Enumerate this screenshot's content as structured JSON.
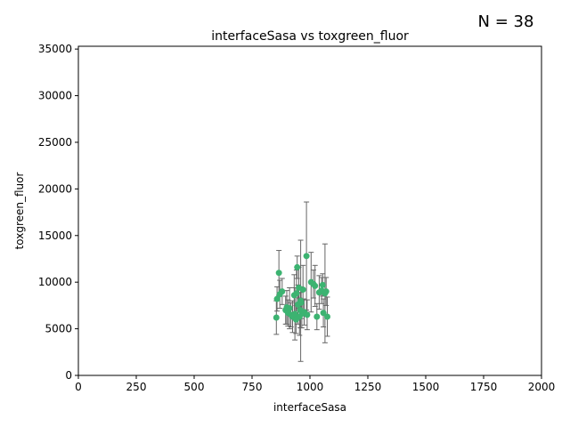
{
  "chart_data": {
    "type": "scatter",
    "title": "interfaceSasa vs toxgreen_fluor",
    "xlabel": "interfaceSasa",
    "ylabel": "toxgreen_fluor",
    "xlim": [
      0,
      2000
    ],
    "ylim": [
      0,
      35300
    ],
    "xticks": [
      0,
      250,
      500,
      750,
      1000,
      1250,
      1500,
      1750,
      2000
    ],
    "yticks": [
      0,
      5000,
      10000,
      15000,
      20000,
      25000,
      30000,
      35000
    ],
    "annotation": "N = 38",
    "grid": false,
    "colors": {
      "point": "#3cb371",
      "errorbar": "#666666"
    },
    "points": [
      {
        "x": 855,
        "y": 6200,
        "err": 1800
      },
      {
        "x": 858,
        "y": 8200,
        "err": 1300
      },
      {
        "x": 866,
        "y": 11000,
        "err": 2400
      },
      {
        "x": 870,
        "y": 8700,
        "err": 1500
      },
      {
        "x": 880,
        "y": 9000,
        "err": 1400
      },
      {
        "x": 895,
        "y": 7000,
        "err": 1500
      },
      {
        "x": 900,
        "y": 7300,
        "err": 1800
      },
      {
        "x": 905,
        "y": 6700,
        "err": 1400
      },
      {
        "x": 912,
        "y": 7200,
        "err": 2200
      },
      {
        "x": 918,
        "y": 6500,
        "err": 1300
      },
      {
        "x": 925,
        "y": 6300,
        "err": 1700
      },
      {
        "x": 932,
        "y": 8600,
        "err": 2200
      },
      {
        "x": 935,
        "y": 6600,
        "err": 2800
      },
      {
        "x": 940,
        "y": 6000,
        "err": 1500
      },
      {
        "x": 942,
        "y": 8800,
        "err": 2500
      },
      {
        "x": 945,
        "y": 11600,
        "err": 1200
      },
      {
        "x": 948,
        "y": 7600,
        "err": 2100
      },
      {
        "x": 952,
        "y": 9400,
        "err": 2200
      },
      {
        "x": 955,
        "y": 6300,
        "err": 2000
      },
      {
        "x": 958,
        "y": 7000,
        "err": 1900
      },
      {
        "x": 960,
        "y": 8000,
        "err": 6500
      },
      {
        "x": 962,
        "y": 7800,
        "err": 1700
      },
      {
        "x": 965,
        "y": 6600,
        "err": 1500
      },
      {
        "x": 970,
        "y": 9200,
        "err": 2600
      },
      {
        "x": 975,
        "y": 6800,
        "err": 1400
      },
      {
        "x": 985,
        "y": 12800,
        "err": 5800
      },
      {
        "x": 988,
        "y": 6500,
        "err": 1600
      },
      {
        "x": 1005,
        "y": 10000,
        "err": 3200
      },
      {
        "x": 1015,
        "y": 9800,
        "err": 1500
      },
      {
        "x": 1022,
        "y": 9600,
        "err": 2200
      },
      {
        "x": 1030,
        "y": 6300,
        "err": 1400
      },
      {
        "x": 1040,
        "y": 8900,
        "err": 1800
      },
      {
        "x": 1050,
        "y": 9100,
        "err": 1400
      },
      {
        "x": 1055,
        "y": 9700,
        "err": 1200
      },
      {
        "x": 1058,
        "y": 6700,
        "err": 1500
      },
      {
        "x": 1065,
        "y": 8800,
        "err": 5300
      },
      {
        "x": 1070,
        "y": 9000,
        "err": 1500
      },
      {
        "x": 1075,
        "y": 6300,
        "err": 2100
      }
    ]
  }
}
